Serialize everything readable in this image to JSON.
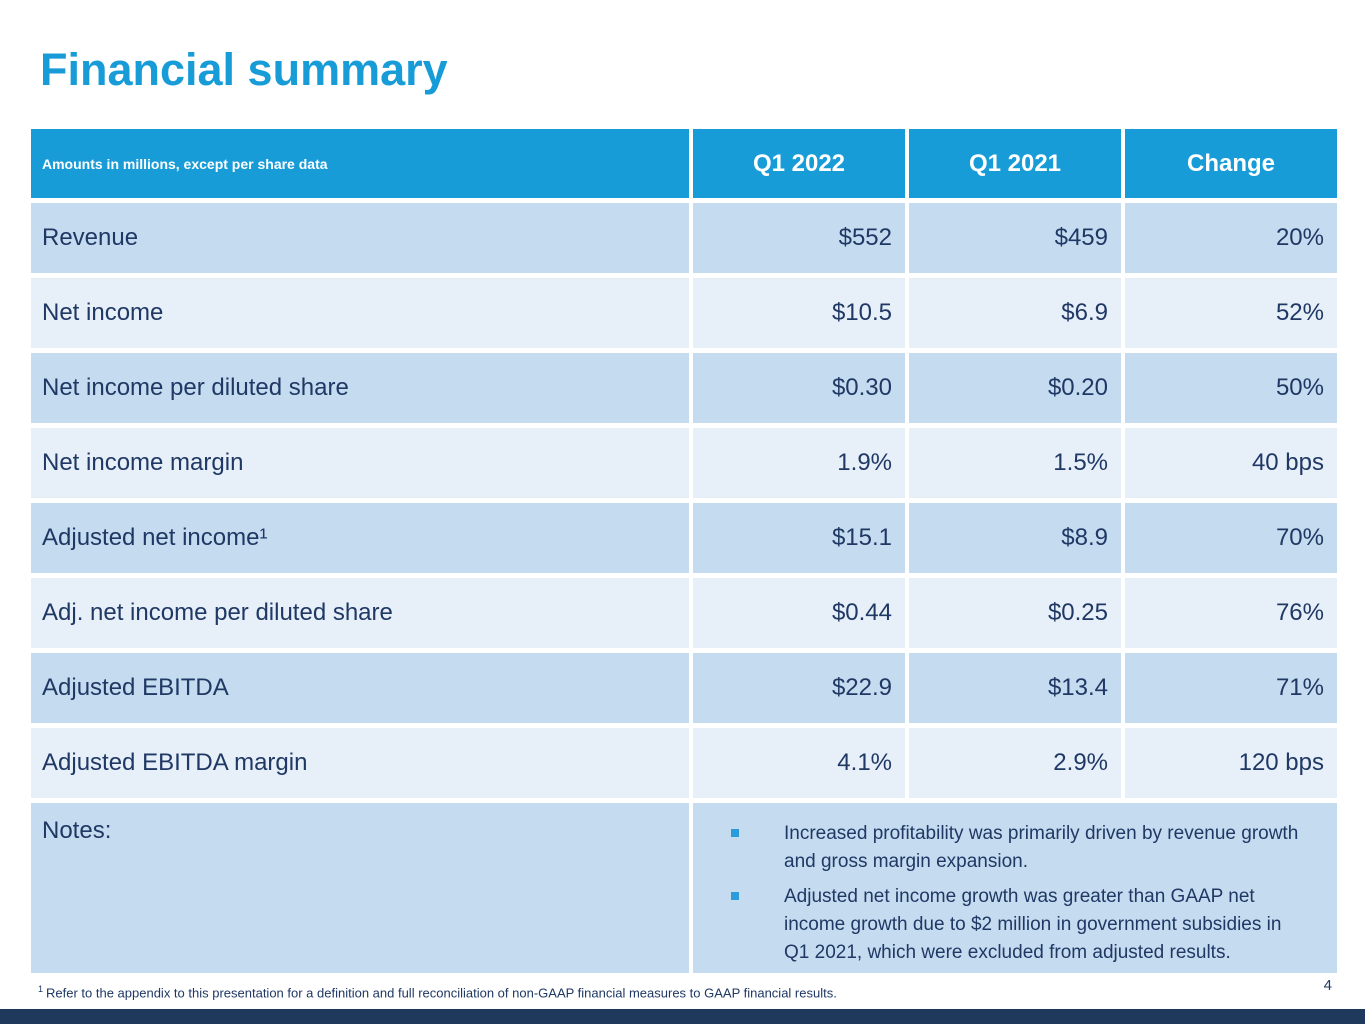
{
  "page": {
    "title": "Financial summary",
    "page_number": "4",
    "footnote_marker": "1",
    "footnote_text": "Refer to the appendix to this presentation for a definition and full reconciliation of non-GAAP financial measures to GAAP financial results."
  },
  "colors": {
    "accent_cyan": "#189CD8",
    "row_shade_dark": "#C5DCF0",
    "row_shade_light": "#E7EFF9",
    "text_navy": "#1F3864",
    "footer_bar_navy": "#1F395C",
    "bullet_cyan": "#2B9CD8"
  },
  "table": {
    "header": {
      "label": "Amounts in millions, except per share data",
      "columns": [
        "Q1 2022",
        "Q1 2021",
        "Change"
      ]
    },
    "rows": [
      {
        "label": "Revenue",
        "q1_2022": "$552",
        "q1_2021": "$459",
        "change": "20%"
      },
      {
        "label": "Net income",
        "q1_2022": "$10.5",
        "q1_2021": "$6.9",
        "change": "52%"
      },
      {
        "label": "Net income per diluted share",
        "q1_2022": "$0.30",
        "q1_2021": "$0.20",
        "change": "50%"
      },
      {
        "label": "Net income margin",
        "q1_2022": "1.9%",
        "q1_2021": "1.5%",
        "change": "40 bps"
      },
      {
        "label": "Adjusted net income¹",
        "q1_2022": "$15.1",
        "q1_2021": "$8.9",
        "change": "70%"
      },
      {
        "label": "Adj. net income per diluted share",
        "q1_2022": "$0.44",
        "q1_2021": "$0.25",
        "change": "76%"
      },
      {
        "label": "Adjusted EBITDA",
        "q1_2022": "$22.9",
        "q1_2021": "$13.4",
        "change": "71%"
      },
      {
        "label": "Adjusted EBITDA margin",
        "q1_2022": "4.1%",
        "q1_2021": "2.9%",
        "change": "120 bps"
      }
    ],
    "notes": {
      "label": "Notes:",
      "bullets": [
        "Increased profitability was primarily driven by revenue growth and gross margin expansion.",
        "Adjusted net income growth was greater than GAAP net income growth due to $2 million in government subsidies in Q1 2021, which were excluded from adjusted results."
      ]
    }
  }
}
